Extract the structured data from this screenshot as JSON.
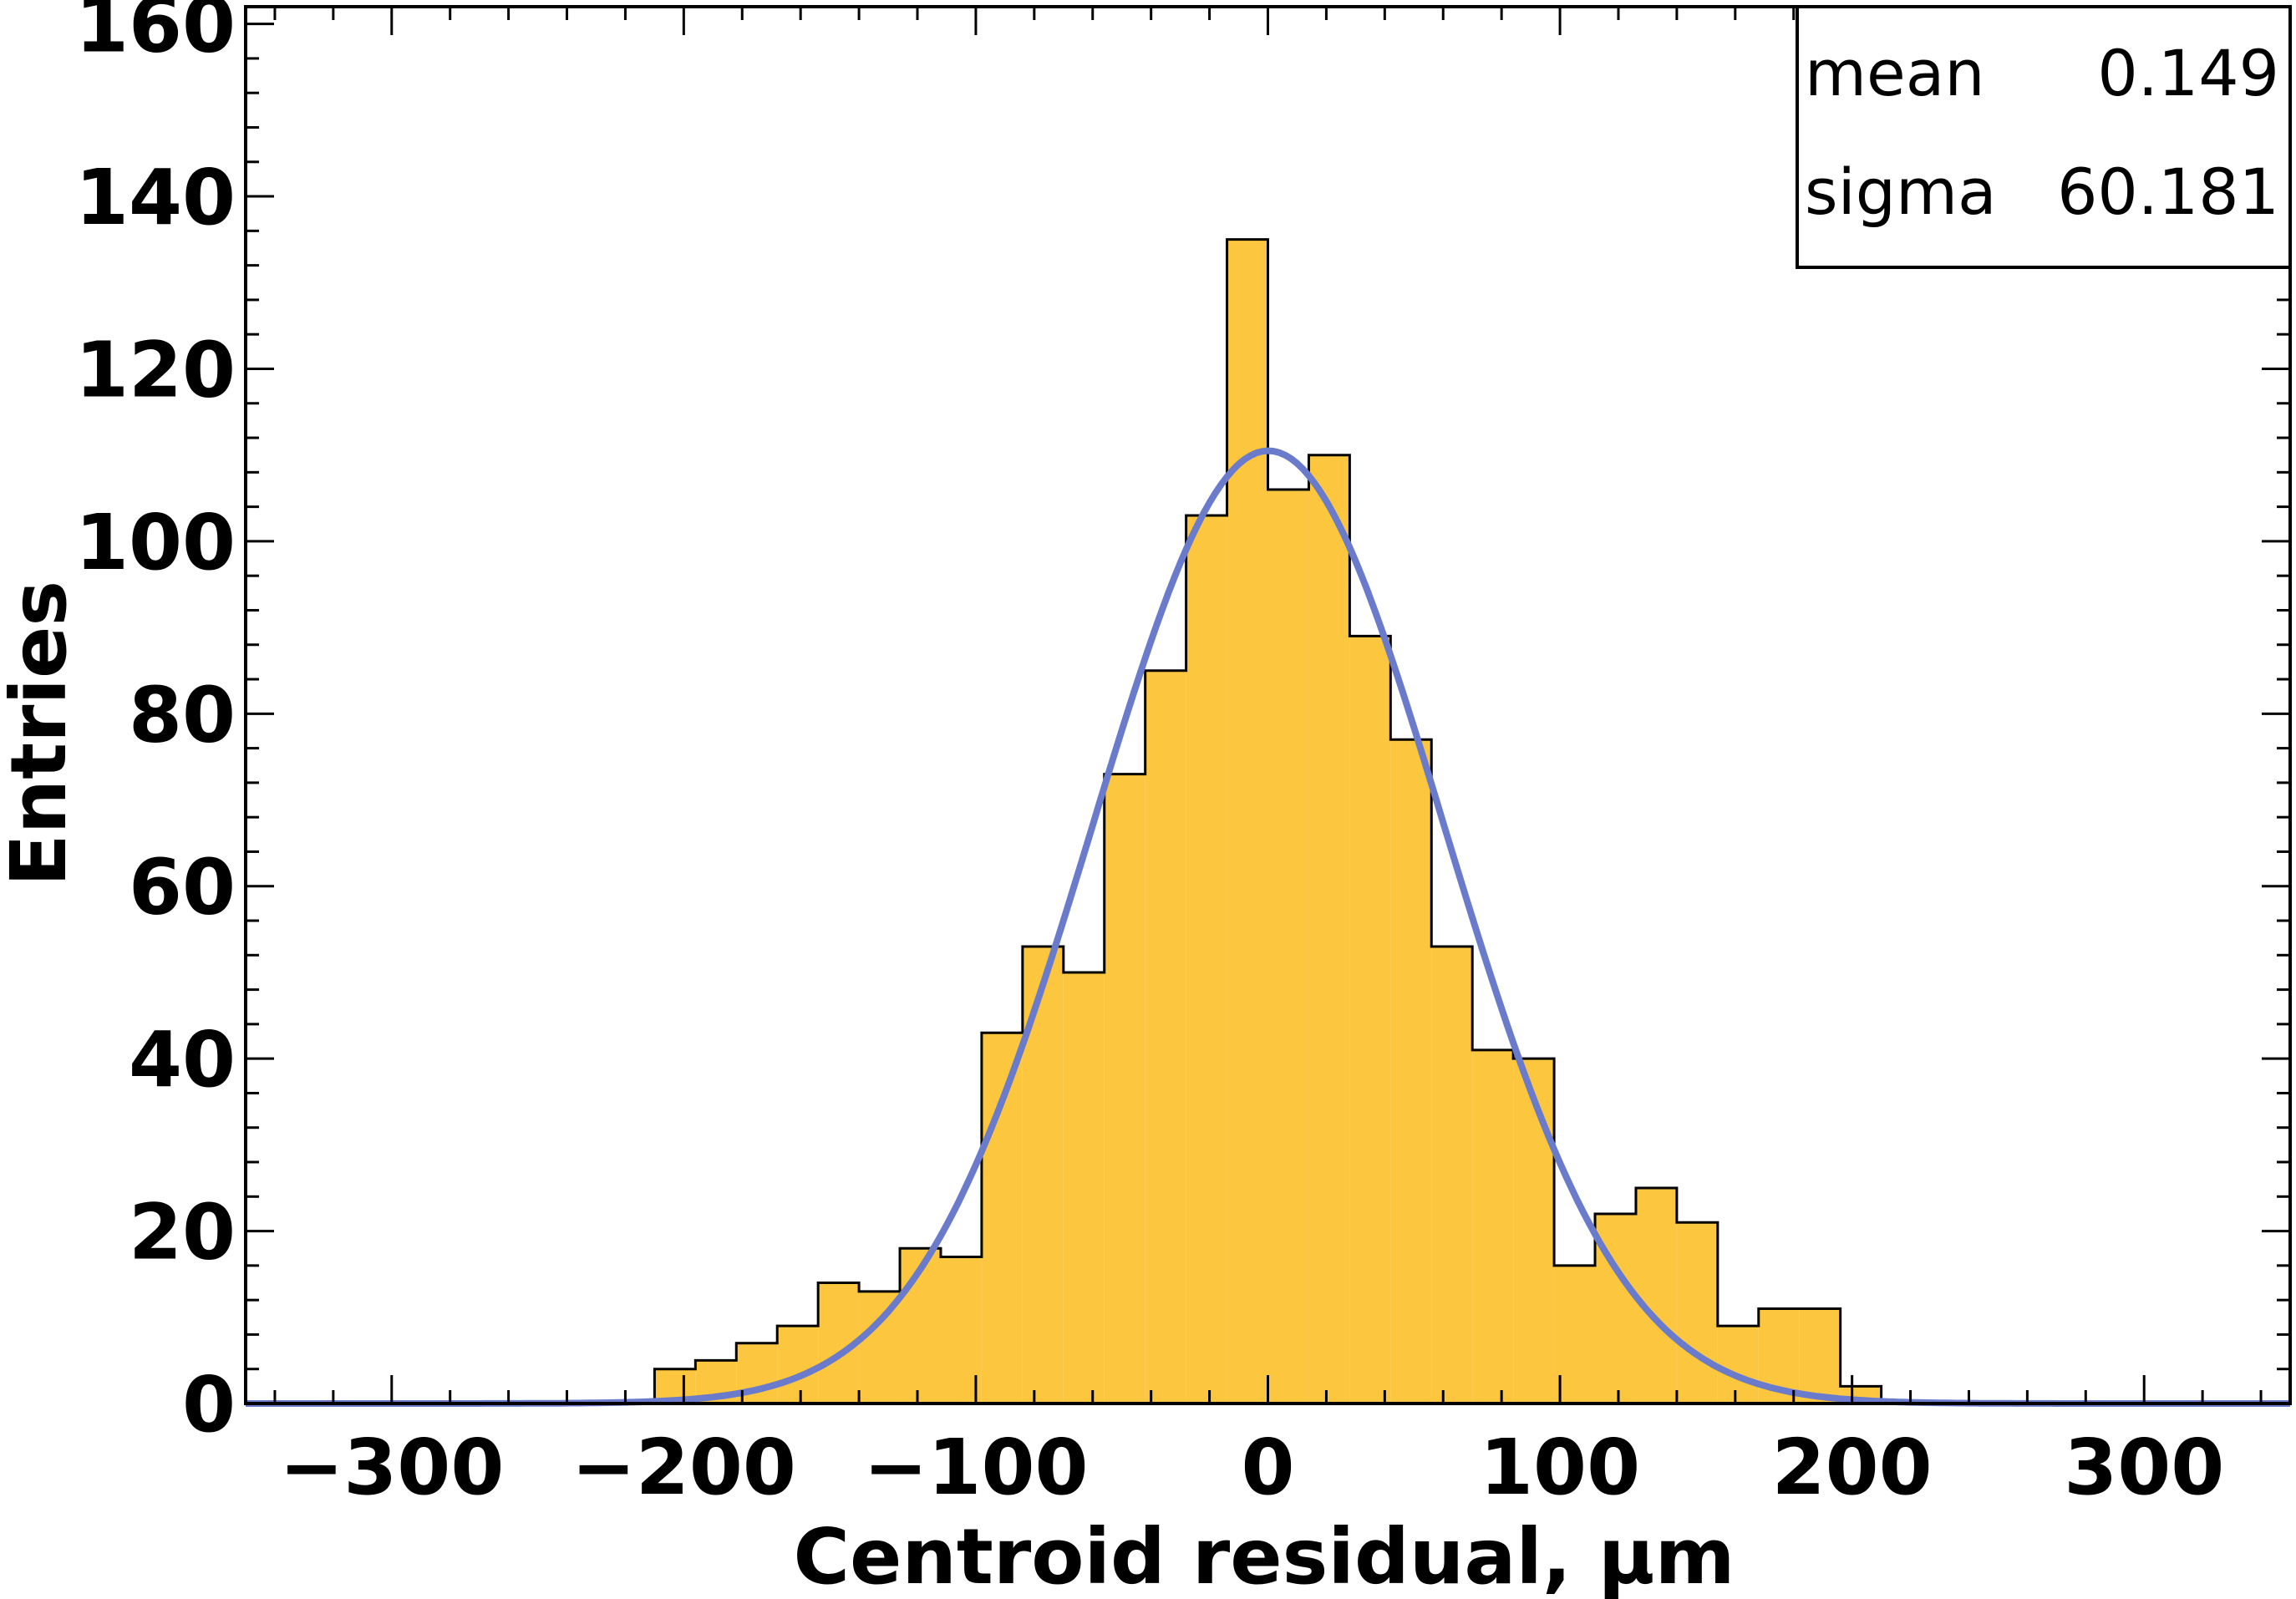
{
  "chart_data": {
    "type": "bar",
    "style": "step-filled histogram with gaussian fit",
    "xlabel": "Centroid residual, µm",
    "ylabel": "Entries",
    "xlim": [
      -350,
      350
    ],
    "ylim": [
      0,
      162
    ],
    "x_ticks": [
      -300,
      -200,
      -100,
      0,
      100,
      200,
      300
    ],
    "x_tick_labels": [
      "−300",
      "−200",
      "−100",
      "0",
      "100",
      "200",
      "300"
    ],
    "y_ticks": [
      0,
      20,
      40,
      60,
      80,
      100,
      120,
      140,
      160
    ],
    "y_tick_labels": [
      "0",
      "20",
      "40",
      "60",
      "80",
      "100",
      "120",
      "140",
      "160"
    ],
    "bin_edges": [
      -210,
      -196,
      -182,
      -168,
      -154,
      -140,
      -126,
      -112,
      -98,
      -84,
      -70,
      -56,
      -42,
      -28,
      -14,
      0,
      14,
      28,
      42,
      56,
      70,
      84,
      98,
      112,
      126,
      140,
      154,
      168,
      182,
      196,
      210
    ],
    "values": [
      4,
      5,
      7,
      9,
      14,
      13,
      18,
      17,
      43,
      53,
      50,
      73,
      85,
      103,
      135,
      106,
      110,
      89,
      77,
      53,
      41,
      40,
      16,
      22,
      25,
      21,
      9,
      11,
      11,
      2
    ],
    "fit": {
      "function": "gaussian",
      "amplitude": 110.5,
      "mean": 0.149,
      "sigma": 60.181
    },
    "colors": {
      "fill": "#fdc63f",
      "edge": "#000000",
      "fit": "#6a7bcc"
    },
    "stats_box": {
      "position": "top-right",
      "rows": [
        {
          "label": "mean",
          "value": "0.149"
        },
        {
          "label": "sigma",
          "value": "60.181"
        }
      ]
    },
    "grid": false
  }
}
